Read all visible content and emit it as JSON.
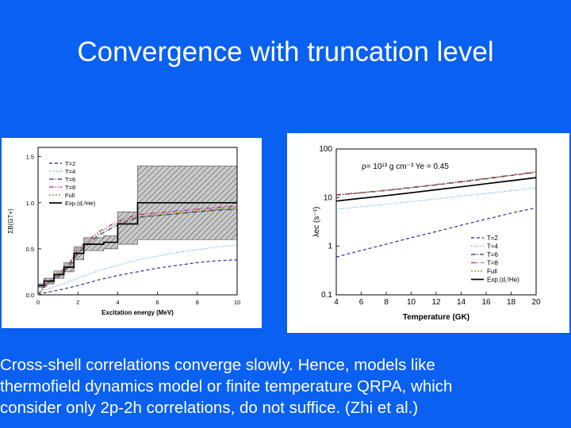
{
  "slide": {
    "title": "Convergence with truncation level",
    "caption_lines": [
      "Cross-shell correlations converge slowly. Hence, models like",
      "thermofield dynamics model or finite temperature QRPA, which",
      "consider only 2p-2h correlations, do not suffice. (Zhi et al.)"
    ]
  },
  "chart_data": [
    {
      "type": "line",
      "title": "",
      "xlabel": "Excitation energy  (MeV)",
      "ylabel": "ΣB(GT+)",
      "xlim": [
        0,
        10
      ],
      "ylim": [
        0,
        1.6
      ],
      "xticks": [
        0,
        2,
        4,
        6,
        8,
        10
      ],
      "xtick_labels": [
        "0",
        "2",
        "4",
        "6",
        "8",
        "10"
      ],
      "yticks": [
        0.0,
        0.5,
        1.0,
        1.5
      ],
      "ytick_labels": [
        "0.0",
        "0.5",
        "1.0",
        "1.5"
      ],
      "grid": false,
      "legend_position": "top-left",
      "series": [
        {
          "name": "T=2",
          "color": "#1a1aa8",
          "dash": "4,3",
          "x": [
            0,
            0.3,
            1.0,
            2.0,
            3.0,
            4.0,
            5.0,
            6.0,
            7.0,
            8.0,
            9.0,
            10.0
          ],
          "y": [
            0.0,
            0.02,
            0.05,
            0.1,
            0.16,
            0.21,
            0.25,
            0.29,
            0.32,
            0.35,
            0.37,
            0.38
          ]
        },
        {
          "name": "T=4",
          "color": "#3a9ad8",
          "dash": "1,2",
          "x": [
            0,
            0.3,
            1.0,
            2.0,
            3.0,
            4.0,
            5.0,
            6.0,
            7.0,
            8.0,
            9.0,
            10.0
          ],
          "y": [
            0.0,
            0.05,
            0.1,
            0.18,
            0.26,
            0.32,
            0.38,
            0.42,
            0.46,
            0.49,
            0.52,
            0.54
          ]
        },
        {
          "name": "T=6",
          "color": "#1a2a70",
          "dash": "6,2,1,2",
          "x": [
            0,
            0.3,
            1.0,
            1.5,
            2.0,
            3.0,
            4.0,
            5.0,
            6.0,
            7.0,
            8.0,
            9.0,
            10.0
          ],
          "y": [
            0.0,
            0.08,
            0.2,
            0.3,
            0.45,
            0.64,
            0.76,
            0.84,
            0.86,
            0.88,
            0.9,
            0.92,
            0.93
          ]
        },
        {
          "name": "T=8",
          "color": "#c2188a",
          "dash": "6,2,1,2,1,2",
          "x": [
            0,
            0.3,
            1.0,
            1.5,
            2.0,
            3.0,
            4.0,
            5.0,
            6.0,
            7.0,
            8.0,
            9.0,
            10.0
          ],
          "y": [
            0.0,
            0.1,
            0.22,
            0.32,
            0.5,
            0.68,
            0.8,
            0.87,
            0.89,
            0.91,
            0.93,
            0.95,
            0.96
          ]
        },
        {
          "name": "Full",
          "color": "#8a8a00",
          "dash": "2,2",
          "x": [
            0,
            0.3,
            1.0,
            1.5,
            2.0,
            3.0,
            4.0,
            5.0,
            6.0,
            7.0,
            8.0,
            9.0,
            10.0
          ],
          "y": [
            0.0,
            0.09,
            0.21,
            0.31,
            0.48,
            0.66,
            0.78,
            0.85,
            0.87,
            0.89,
            0.91,
            0.93,
            0.94
          ]
        },
        {
          "name": "Exp.(d,²He)",
          "color": "#000000",
          "dash": "",
          "x": [
            0,
            0.3,
            0.3,
            0.8,
            0.8,
            1.3,
            1.3,
            1.8,
            1.8,
            2.3,
            2.3,
            3.3,
            3.3,
            4.0,
            4.0,
            5.0,
            5.0,
            10.0
          ],
          "y": [
            0.1,
            0.1,
            0.15,
            0.15,
            0.22,
            0.22,
            0.3,
            0.3,
            0.45,
            0.45,
            0.55,
            0.55,
            0.57,
            0.57,
            0.77,
            0.77,
            1.0,
            1.0
          ]
        }
      ],
      "error_band": {
        "x": [
          0,
          0.3,
          0.3,
          0.8,
          0.8,
          1.3,
          1.3,
          1.8,
          1.8,
          2.3,
          2.3,
          3.3,
          3.3,
          4.0,
          4.0,
          5.0,
          5.0,
          10.0
        ],
        "y_low": [
          0.08,
          0.08,
          0.12,
          0.12,
          0.18,
          0.18,
          0.25,
          0.25,
          0.38,
          0.38,
          0.48,
          0.48,
          0.5,
          0.5,
          0.55,
          0.55,
          0.6,
          0.6
        ],
        "y_high": [
          0.12,
          0.12,
          0.18,
          0.18,
          0.26,
          0.26,
          0.35,
          0.35,
          0.52,
          0.52,
          0.62,
          0.62,
          0.64,
          0.64,
          0.9,
          0.9,
          1.4,
          1.4
        ]
      }
    },
    {
      "type": "line",
      "title": "",
      "annotation": "ρ= 10¹³ g cm⁻³ Ye = 0.45",
      "xlabel": "Temperature (GK)",
      "ylabel": "λec (s⁻¹)",
      "xlim": [
        4,
        20
      ],
      "ylim": [
        0.1,
        100
      ],
      "yscale": "log",
      "xticks": [
        4,
        6,
        8,
        10,
        12,
        14,
        16,
        18,
        20
      ],
      "xtick_labels": [
        "4",
        "6",
        "8",
        "10",
        "12",
        "14",
        "16",
        "18",
        "20"
      ],
      "yticks": [
        0.1,
        1,
        10,
        100
      ],
      "ytick_labels": [
        "0.1",
        "1",
        "10",
        "100"
      ],
      "grid": false,
      "legend_position": "bottom-right",
      "series": [
        {
          "name": "T=2",
          "color": "#1a1aa8",
          "dash": "4,3",
          "x": [
            4,
            6,
            8,
            10,
            12,
            14,
            16,
            18,
            20
          ],
          "y": [
            0.6,
            0.82,
            1.1,
            1.5,
            2.0,
            2.7,
            3.6,
            4.8,
            6.2
          ]
        },
        {
          "name": "T=4",
          "color": "#3a9ad8",
          "dash": "1,2",
          "x": [
            4,
            6,
            8,
            10,
            12,
            14,
            16,
            18,
            20
          ],
          "y": [
            5.8,
            6.5,
            7.3,
            8.3,
            9.4,
            10.7,
            12.2,
            13.9,
            15.8
          ]
        },
        {
          "name": "T=6",
          "color": "#1a2a70",
          "dash": "6,2,1,2",
          "x": [
            4,
            6,
            8,
            10,
            12,
            14,
            16,
            18,
            20
          ],
          "y": [
            11.2,
            12.5,
            14.0,
            15.9,
            18.2,
            21.0,
            24.3,
            28.3,
            33.0
          ]
        },
        {
          "name": "T=8",
          "color": "#c2188a",
          "dash": "6,2,1,2,1,2",
          "x": [
            4,
            6,
            8,
            10,
            12,
            14,
            16,
            18,
            20
          ],
          "y": [
            11.5,
            12.8,
            14.3,
            16.3,
            18.7,
            21.6,
            25.0,
            29.2,
            34.0
          ]
        },
        {
          "name": "Full",
          "color": "#8a8a00",
          "dash": "2,2",
          "x": [
            4,
            6,
            8,
            10,
            12,
            14,
            16,
            18,
            20
          ],
          "y": [
            11.3,
            12.6,
            14.1,
            16.1,
            18.4,
            21.3,
            24.7,
            28.8,
            33.5
          ]
        },
        {
          "name": "Exp.(d,²He)",
          "color": "#000000",
          "dash": "",
          "x": [
            4,
            6,
            8,
            10,
            12,
            14,
            16,
            18,
            20
          ],
          "y": [
            8.5,
            9.7,
            11.0,
            12.6,
            14.5,
            16.7,
            19.3,
            22.3,
            25.8
          ]
        }
      ]
    }
  ]
}
